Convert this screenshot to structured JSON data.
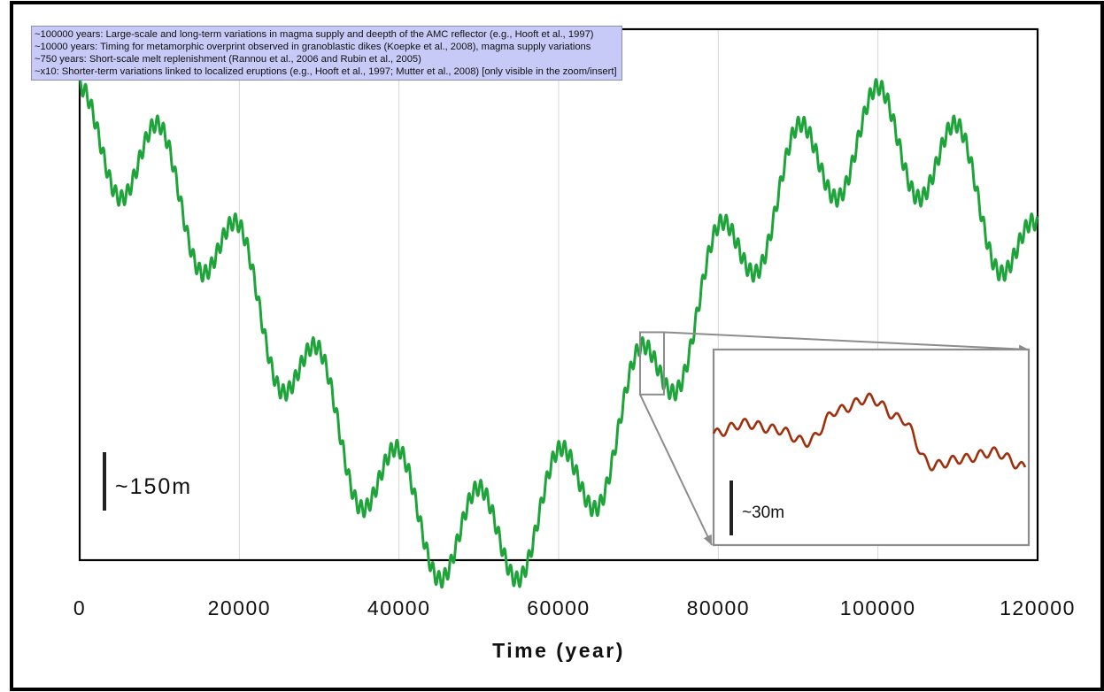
{
  "legend": {
    "lines": [
      "~100000 years: Large-scale and long-term variations in magma supply and deepth of the AMC reflector (e.g., Hooft et al., 1997)",
      "~10000 years: Timing for metamorphic overprint observed in granoblastic dikes (Koepke et al., 2008), magma supply variations",
      "~750 years: Short-scale melt replenishment (Rannou et al., 2006 and Rubin et al., 2005)",
      "~x10: Shorter-term variations linked to localized eruptions (e.g., Hooft et al., 1997; Mutter et al., 2008) [only visible in the zoom/insert]"
    ]
  },
  "scale_bars": {
    "main": "~150m",
    "inset": "~30m"
  },
  "colors": {
    "main_line": "#1ea43a",
    "inset_line": "#a0300c",
    "zoom_box": "#8c8c8c",
    "legend_bg": "#c7c9f7"
  },
  "chart_data": {
    "type": "line",
    "title": "",
    "xlabel": "Time (year)",
    "ylabel": "",
    "xlim": [
      0,
      120000
    ],
    "x_ticks": [
      "0",
      "20000",
      "40000",
      "60000",
      "80000",
      "100000",
      "120000"
    ],
    "y_ticks_shown": false,
    "grid": "vertical",
    "description_note": "",
    "components": [
      {
        "period_years": 100000,
        "amplitude_m": 150
      },
      {
        "period_years": 10000,
        "amplitude_m": 38
      },
      {
        "period_years": 750,
        "amplitude_m": 6
      }
    ],
    "series": [
      {
        "name": "",
        "x": [
          0,
          5000,
          10000,
          15000,
          20000,
          25000,
          30000,
          35000,
          40000,
          45000,
          50000,
          55000,
          60000,
          65000,
          70000,
          75000,
          80000,
          85000,
          90000,
          95000,
          100000,
          105000,
          110000,
          115000,
          120000
        ],
        "y": [
          0,
          -72,
          -40,
          -135,
          -110,
          -205,
          -175,
          -262,
          -223,
          -305,
          -262,
          -305,
          -223,
          -262,
          -175,
          -205,
          -110,
          -135,
          -40,
          -72,
          0,
          -35,
          38,
          -35,
          38
        ]
      }
    ],
    "inset": {
      "zoom_x_range": [
        70200,
        73200
      ],
      "inset_series": {
        "name": "",
        "x": [
          0,
          0.1,
          0.2,
          0.3,
          0.4,
          0.5,
          0.6,
          0.7,
          0.8,
          0.9,
          1.0
        ],
        "y": [
          0,
          12,
          5,
          -10,
          28,
          42,
          18,
          -38,
          -30,
          -22,
          -40
        ]
      }
    }
  }
}
